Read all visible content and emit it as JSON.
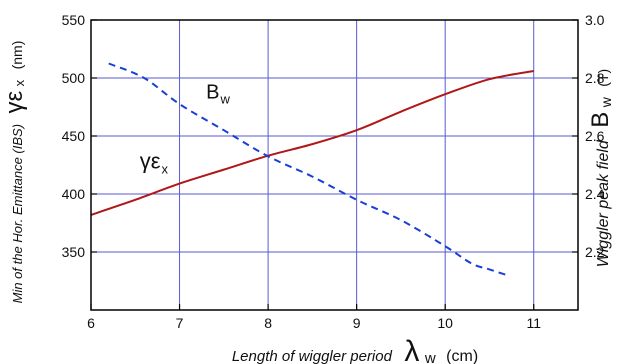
{
  "chart_data": {
    "type": "line",
    "title": "",
    "x": {
      "label": "Length of wiggler period",
      "symbol": "λ",
      "symbol_sub": "w",
      "unit": "(cm)",
      "range": [
        6,
        11.5
      ],
      "ticks": [
        6,
        7,
        8,
        9,
        10,
        11
      ],
      "grid": true
    },
    "y_left": {
      "label": "Min of the Hor. Emittance (IBS)",
      "symbol": "γε",
      "symbol_sub": "x",
      "unit": "(nm)",
      "range": [
        300,
        550
      ],
      "ticks": [
        350,
        400,
        450,
        500,
        550
      ],
      "grid": true
    },
    "y_right": {
      "label": "Wiggler peak field",
      "symbol": "B",
      "symbol_sub": "w",
      "unit": "(T)",
      "range": [
        2.0,
        3.0
      ],
      "ticks": [
        2.2,
        2.4,
        2.6,
        2.8,
        3.0
      ],
      "tick_labels": [
        "2.2",
        "2.4",
        "2.6",
        "2.8",
        "3.0"
      ]
    },
    "series": [
      {
        "name": "γεx",
        "name_symbol": "γε",
        "name_sub": "x",
        "axis": "left",
        "style": "solid",
        "color": "#b01818",
        "x": [
          6.0,
          6.5,
          7.0,
          7.5,
          8.0,
          8.5,
          9.0,
          9.5,
          10.0,
          10.5,
          11.0
        ],
        "y": [
          382,
          395,
          409,
          421,
          433,
          443,
          455,
          471,
          486,
          499,
          506
        ]
      },
      {
        "name": "Bw",
        "name_symbol": "B",
        "name_sub": "w",
        "axis": "right",
        "style": "dashed",
        "color": "#1a3fd6",
        "x": [
          6.2,
          6.6,
          7.0,
          7.5,
          8.0,
          8.5,
          9.0,
          9.5,
          10.0,
          10.3,
          10.5,
          10.7
        ],
        "y": [
          2.85,
          2.8,
          2.71,
          2.62,
          2.53,
          2.46,
          2.38,
          2.31,
          2.22,
          2.16,
          2.14,
          2.12
        ]
      }
    ],
    "annotations": [
      {
        "series": "γεx",
        "text_symbol": "γε",
        "text_sub": "x",
        "x": 6.55,
        "y_axis": "left",
        "y": 422
      },
      {
        "series": "Bw",
        "text_symbol": "B",
        "text_sub": "w",
        "x": 7.3,
        "y_axis": "right",
        "y": 2.73
      }
    ]
  }
}
